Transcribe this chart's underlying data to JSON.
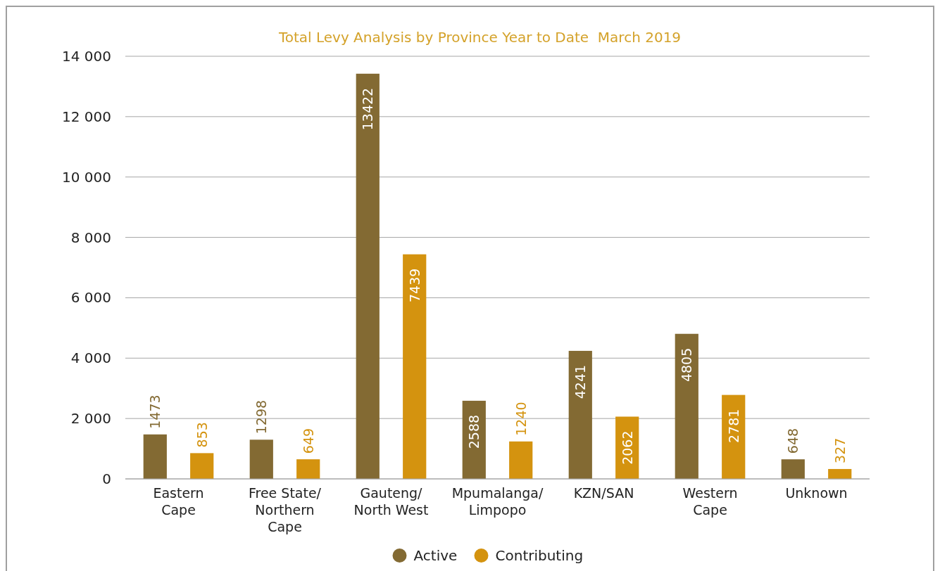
{
  "chart_data": {
    "type": "bar",
    "title": "Total Levy Analysis by Province Year to Date  March 2019",
    "categories": [
      "Eastern\nCape",
      "Free State/\nNorthern\nCape",
      "Gauteng/\nNorth West",
      "Mpumalanga/\nLimpopo",
      "KZN/SAN",
      "Western\nCape",
      "Unknown"
    ],
    "series": [
      {
        "name": "Active",
        "color": "#836a33",
        "values": [
          1473,
          1298,
          13422,
          2588,
          4241,
          4805,
          648
        ]
      },
      {
        "name": "Contributing",
        "color": "#d4930f",
        "values": [
          853,
          649,
          7439,
          1240,
          2062,
          2781,
          327
        ]
      }
    ],
    "ylim": [
      0,
      14000
    ],
    "yticks": [
      {
        "value": 0,
        "label": "0"
      },
      {
        "value": 2000,
        "label": "2 000"
      },
      {
        "value": 4000,
        "label": "4 000"
      },
      {
        "value": 6000,
        "label": "6 000"
      },
      {
        "value": 8000,
        "label": "8 000"
      },
      {
        "value": 10000,
        "label": "10 000"
      },
      {
        "value": 12000,
        "label": "12 000"
      },
      {
        "value": 14000,
        "label": "14 000"
      }
    ],
    "grid": "y",
    "legend": "bottom",
    "data_labels": true
  }
}
